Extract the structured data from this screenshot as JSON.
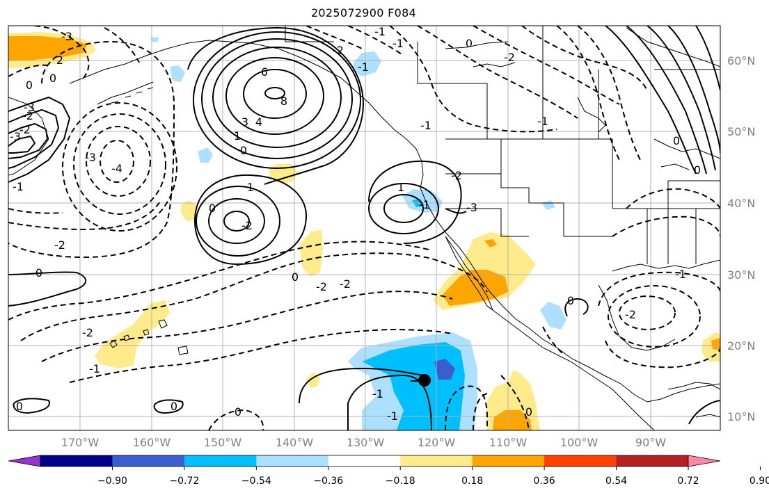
{
  "title": "2025072900 F084",
  "lon_labels": [
    "170°W",
    "160°W",
    "150°W",
    "140°W",
    "130°W",
    "120°W",
    "110°W",
    "100°W",
    "90°W"
  ],
  "lat_labels": [
    "60°N",
    "50°N",
    "40°N",
    "30°N",
    "20°N",
    "10°N"
  ],
  "colorbar": {
    "ticks": [
      "−0.90",
      "−0.72",
      "−0.54",
      "−0.36",
      "−0.18",
      "0.18",
      "0.36",
      "0.54",
      "0.72",
      "0.90"
    ],
    "colors": [
      "#9932CC",
      "#00008B",
      "#3A5FCD",
      "#00BFFF",
      "#ADDFFF",
      "#FFFFFF",
      "#FFEA8C",
      "#FFA500",
      "#FF4000",
      "#B22222",
      "#FF88AA"
    ]
  },
  "contour_labels": [
    "-3",
    "2",
    "0",
    "0",
    "-3",
    "-2",
    "-3",
    "-4",
    "-1",
    "-2",
    "6",
    "8",
    "4",
    "3",
    "1",
    "0",
    "-1",
    "-2",
    "-1",
    "-2",
    "1",
    "0",
    "-2",
    "0",
    "0",
    "-2",
    "-2",
    "1",
    "-1",
    "-1",
    "-1",
    "-2",
    "-3",
    "-1",
    "0",
    "-1",
    "-2",
    "0",
    "0",
    "0",
    "-3",
    "-2",
    "-1",
    "-1",
    "0",
    "-2",
    "-1",
    "0",
    "0",
    "0"
  ],
  "marker": "storm-center"
}
